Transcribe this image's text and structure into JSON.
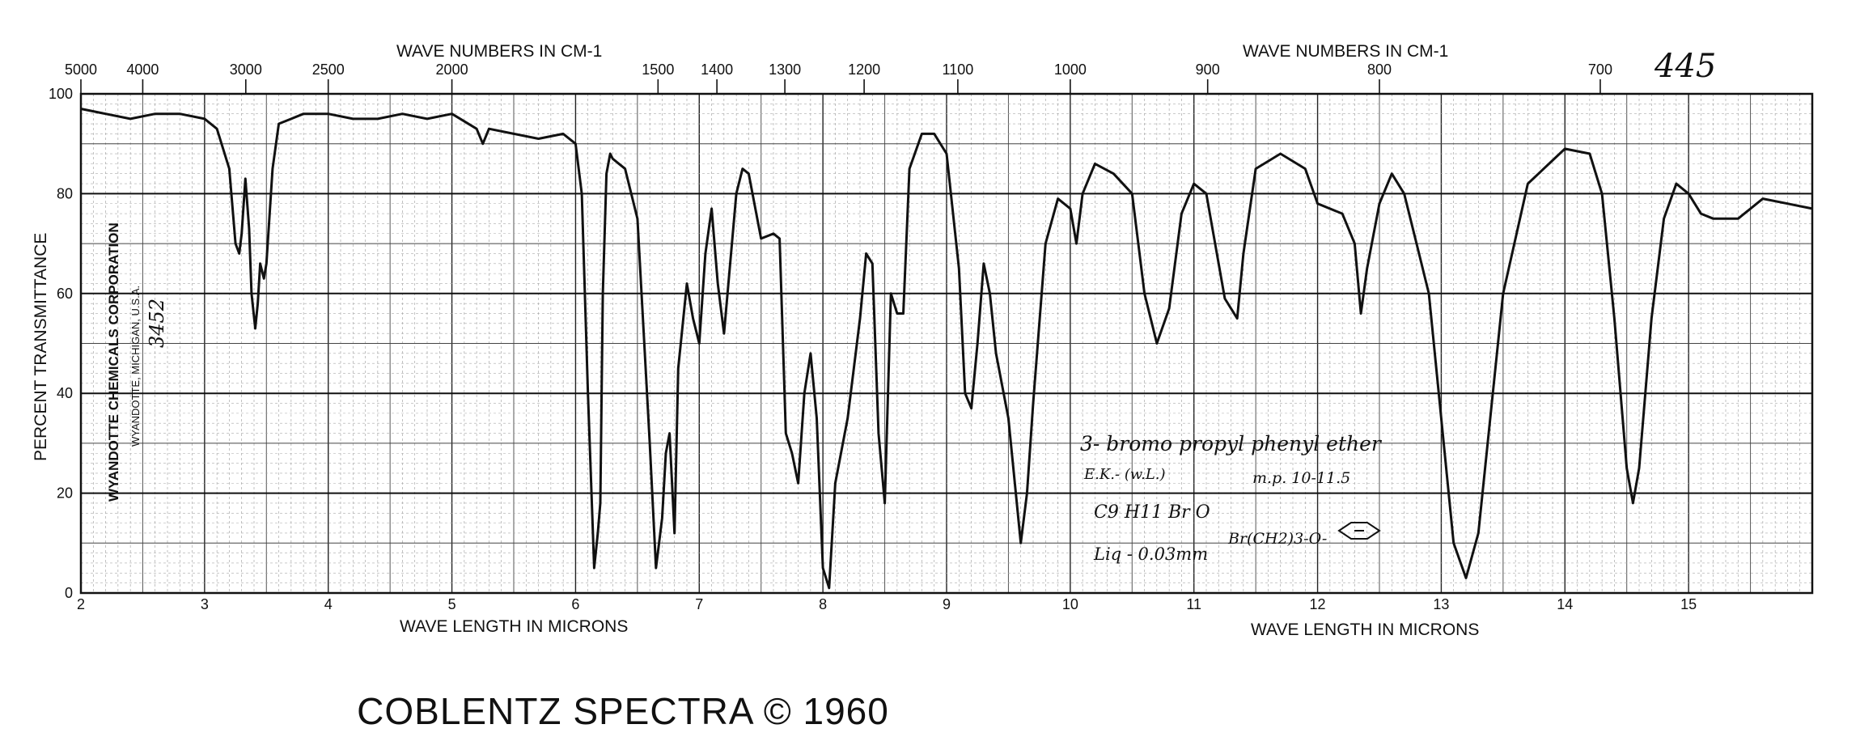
{
  "chart_data": {
    "type": "line",
    "title": "",
    "xlabel": "WAVE LENGTH IN MICRONS",
    "ylabel": "PERCENT TRANSMITTANCE",
    "top_axis_label": "WAVE NUMBERS IN CM-1",
    "xlim": [
      2,
      16
    ],
    "ylim": [
      0,
      100
    ],
    "grid": true,
    "x_ticks": [
      "2",
      "3",
      "4",
      "5",
      "6",
      "7",
      "8",
      "9",
      "10",
      "11",
      "12",
      "13",
      "14",
      "15"
    ],
    "y_ticks": [
      "0",
      "20",
      "40",
      "60",
      "80",
      "100"
    ],
    "top_ticks_left": [
      "5000",
      "4000",
      "3000",
      "2500",
      "2000",
      "1500",
      "1400",
      "1300",
      "1200",
      "1100",
      "1000"
    ],
    "top_ticks_right": [
      "900",
      "800",
      "700"
    ],
    "series": [
      {
        "x": [
          2.0,
          2.2,
          2.4,
          2.6,
          2.8,
          3.0,
          3.1,
          3.2,
          3.25,
          3.28,
          3.3,
          3.33,
          3.36,
          3.38,
          3.41,
          3.43,
          3.45,
          3.48,
          3.5,
          3.55,
          3.6,
          3.7,
          3.8,
          4.0,
          4.2,
          4.4,
          4.6,
          4.8,
          5.0,
          5.2,
          5.25,
          5.3,
          5.5,
          5.7,
          5.9,
          6.0,
          6.05,
          6.1,
          6.15,
          6.18,
          6.2,
          6.22,
          6.25,
          6.28,
          6.3,
          6.4,
          6.5,
          6.6,
          6.65,
          6.7,
          6.73,
          6.76,
          6.8,
          6.83,
          6.9,
          6.95,
          7.0,
          7.05,
          7.1,
          7.15,
          7.2,
          7.3,
          7.35,
          7.4,
          7.5,
          7.6,
          7.65,
          7.7,
          7.75,
          7.8,
          7.85,
          7.9,
          7.95,
          8.0,
          8.05,
          8.1,
          8.2,
          8.3,
          8.35,
          8.4,
          8.45,
          8.5,
          8.55,
          8.6,
          8.65,
          8.7,
          8.8,
          8.9,
          9.0,
          9.1,
          9.15,
          9.2,
          9.25,
          9.3,
          9.35,
          9.4,
          9.5,
          9.6,
          9.65,
          9.7,
          9.8,
          9.9,
          10.0,
          10.05,
          10.1,
          10.2,
          10.35,
          10.5,
          10.6,
          10.7,
          10.8,
          10.9,
          11.0,
          11.1,
          11.25,
          11.35,
          11.4,
          11.5,
          11.7,
          11.9,
          12.0,
          12.2,
          12.3,
          12.35,
          12.4,
          12.5,
          12.6,
          12.7,
          12.8,
          12.9,
          13.0,
          13.1,
          13.2,
          13.3,
          13.5,
          13.7,
          14.0,
          14.2,
          14.3,
          14.4,
          14.5,
          14.55,
          14.6,
          14.7,
          14.8,
          14.9,
          15.0,
          15.1,
          15.2,
          15.4,
          15.6,
          15.8,
          16.0
        ],
        "values": [
          97,
          96,
          95,
          96,
          96,
          95,
          93,
          85,
          70,
          68,
          72,
          83,
          73,
          60,
          53,
          58,
          66,
          63,
          66,
          85,
          94,
          95,
          96,
          96,
          95,
          95,
          96,
          95,
          96,
          93,
          90,
          93,
          92,
          91,
          92,
          90,
          80,
          40,
          5,
          12,
          18,
          60,
          84,
          88,
          87,
          85,
          75,
          30,
          5,
          15,
          28,
          32,
          12,
          45,
          62,
          55,
          50,
          68,
          77,
          62,
          52,
          80,
          85,
          84,
          71,
          72,
          71,
          32,
          28,
          22,
          40,
          48,
          35,
          5,
          1,
          22,
          35,
          55,
          68,
          66,
          32,
          18,
          60,
          56,
          56,
          85,
          92,
          92,
          88,
          65,
          40,
          37,
          50,
          66,
          60,
          48,
          35,
          10,
          20,
          38,
          70,
          79,
          77,
          70,
          80,
          86,
          84,
          80,
          60,
          50,
          57,
          76,
          82,
          80,
          59,
          55,
          68,
          85,
          88,
          85,
          78,
          76,
          70,
          56,
          65,
          78,
          84,
          80,
          70,
          60,
          35,
          10,
          3,
          12,
          60,
          82,
          89,
          88,
          80,
          55,
          25,
          18,
          25,
          55,
          75,
          82,
          80,
          76,
          75,
          75,
          79,
          78,
          77
        ],
        "color": "#111111"
      }
    ],
    "annotations": {
      "sheet_number": "445",
      "compound": "3- bromo propyl phenyl ether",
      "source": "E.K.- (w.L.)",
      "melting_point": "m.p. 10-11.5",
      "formula": "C9 H11 Br O",
      "state": "Liq - 0.03mm",
      "structure": "Br(CH2)3-O-"
    },
    "side_text": {
      "company": "WYANDOTTE CHEMICALS CORPORATION",
      "location": "WYANDOTTE, MICHIGAN, U.S.A.",
      "number": "3452"
    }
  },
  "footer": "COBLENTZ  SPECTRA © 1960"
}
